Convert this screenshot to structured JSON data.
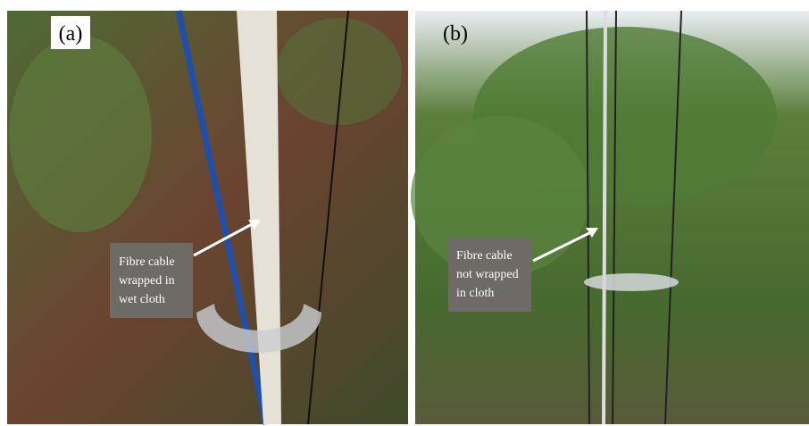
{
  "panels": [
    {
      "label": "(a)",
      "annotation": [
        "Fibre cable",
        "wrapped in",
        "wet cloth"
      ]
    },
    {
      "label": "(b)",
      "annotation": [
        "Fibre cable",
        "not wrapped",
        "in cloth"
      ]
    }
  ]
}
